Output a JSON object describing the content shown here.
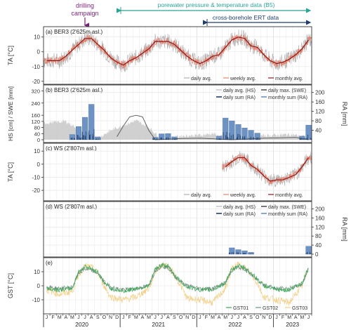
{
  "annotations": {
    "drilling": [
      "drilling",
      "campaign"
    ],
    "porewater": "porewater pressure & temperature data (B5)",
    "ert": "cross-borehole ERT data"
  },
  "colors": {
    "daily": "#b0b0b0",
    "weekly": "#e8826f",
    "monthly": "#8b1a1a",
    "hs": "#c8c8c8",
    "swe": "#555555",
    "ra_daily": "#1f3e6e",
    "ra_monthly": "#6d93c4",
    "gst01": "#3fa65c",
    "gst02": "#6f8f7c",
    "gst03": "#f2cf86",
    "annotation": "#2aa594",
    "drill": "#7b1f7b"
  },
  "x_axis": {
    "month_letters": [
      "J",
      "F",
      "M",
      "A",
      "M",
      "J",
      "J",
      "A",
      "S",
      "O",
      "N",
      "D"
    ],
    "years": [
      "2020",
      "2021",
      "2022",
      "2023"
    ]
  },
  "chart_data": [
    {
      "id": "a",
      "type": "line",
      "title": "(a) BER3 (2'625m asl.)",
      "ylabel": "TA [°C]",
      "ylim": [
        -22,
        17
      ],
      "yticks": [
        -20,
        -10,
        0,
        10
      ],
      "x_start": "2020-01",
      "x_end": "2023-07",
      "legend": [
        "daily avg.",
        "weekly avg.",
        "monthly avg."
      ],
      "series": [
        {
          "name": "monthly avg.",
          "x": [
            "2020-01",
            "2020-02",
            "2020-03",
            "2020-04",
            "2020-05",
            "2020-06",
            "2020-07",
            "2020-08",
            "2020-09",
            "2020-10",
            "2020-11",
            "2020-12",
            "2021-01",
            "2021-02",
            "2021-03",
            "2021-04",
            "2021-05",
            "2021-06",
            "2021-07",
            "2021-08",
            "2021-09",
            "2021-10",
            "2021-11",
            "2021-12",
            "2022-01",
            "2022-02",
            "2022-03",
            "2022-04",
            "2022-05",
            "2022-06",
            "2022-07",
            "2022-08",
            "2022-09",
            "2022-10",
            "2022-11",
            "2022-12",
            "2023-01",
            "2023-02",
            "2023-03",
            "2023-04",
            "2023-05",
            "2023-06"
          ],
          "values": [
            -6,
            -6,
            -6,
            -3,
            1,
            5,
            9,
            9,
            5,
            1,
            -4,
            -7,
            -9,
            -6,
            -4,
            -1,
            2,
            7,
            7,
            7,
            5,
            1,
            -3,
            -6,
            -8,
            -6,
            -3,
            -2,
            3,
            8,
            10,
            9,
            4,
            3,
            -2,
            -6,
            -8,
            -7,
            -5,
            -2,
            2,
            8
          ]
        }
      ]
    },
    {
      "id": "b",
      "type": "bar",
      "title": "(b) BER3 (2'625m asl.)",
      "ylabel_left": "HS [cm] / SWE [mm]",
      "ylabel_right": "RA [mm]",
      "left_ticks": [
        0,
        40,
        80,
        120,
        160,
        240,
        320
      ],
      "right_ticks": [
        40,
        80,
        120,
        160,
        200
      ],
      "legend": [
        "daily avg. (HS)",
        "daily max. (SWE)",
        "daily sum (RA)",
        "monthly sum (RA)"
      ],
      "series": [
        {
          "name": "monthly sum (RA)",
          "x": [
            "2020-05",
            "2020-06",
            "2020-07",
            "2020-08",
            "2020-09",
            "2021-06",
            "2021-07",
            "2021-08",
            "2021-09",
            "2022-04",
            "2022-05",
            "2022-06",
            "2022-07",
            "2022-08",
            "2022-09",
            "2022-10",
            "2023-05",
            "2023-06"
          ],
          "values": [
            22,
            56,
            95,
            150,
            12,
            10,
            25,
            26,
            12,
            15,
            92,
            80,
            65,
            50,
            40,
            28,
            15,
            62
          ]
        },
        {
          "name": "daily max. (SWE)",
          "x": [
            "2020-12",
            "2021-01",
            "2021-02",
            "2021-03",
            "2021-04",
            "2021-05",
            "2021-06",
            "2021-10",
            "2022-01",
            "2022-06",
            "2022-11",
            "2023-01",
            "2023-04",
            "2023-06"
          ],
          "values": [
            20,
            90,
            150,
            160,
            150,
            60,
            0,
            8,
            10,
            0,
            10,
            12,
            15,
            0
          ]
        },
        {
          "name": "daily avg. (HS)",
          "x": [
            "2020-01",
            "2020-04",
            "2020-06",
            "2020-09",
            "2020-11",
            "2021-01",
            "2021-03",
            "2021-05",
            "2021-07",
            "2021-10",
            "2022-01",
            "2022-03",
            "2022-05",
            "2022-07",
            "2022-10",
            "2023-01",
            "2023-03",
            "2023-05",
            "2023-06"
          ],
          "values": [
            110,
            120,
            70,
            10,
            60,
            95,
            125,
            80,
            5,
            25,
            30,
            40,
            15,
            0,
            25,
            30,
            35,
            25,
            5
          ]
        }
      ]
    },
    {
      "id": "c",
      "type": "line",
      "title": "(c) WS (2'807m asl.)",
      "ylabel": "TA [°C]",
      "ylim": [
        -28,
        16
      ],
      "yticks": [
        -20,
        -10,
        0,
        10
      ],
      "legend": [
        "daily avg.",
        "weekly avg.",
        "monthly avg."
      ],
      "series": [
        {
          "name": "monthly avg.",
          "x": [
            "2022-05",
            "2022-06",
            "2022-07",
            "2022-08",
            "2022-09",
            "2022-10",
            "2022-11",
            "2022-12",
            "2023-01",
            "2023-02",
            "2023-03",
            "2023-04",
            "2023-05",
            "2023-06"
          ],
          "values": [
            -2,
            2,
            5,
            5,
            -1,
            -4,
            -9,
            -13,
            -12,
            -12,
            -10,
            -8,
            -2,
            5
          ]
        }
      ]
    },
    {
      "id": "d",
      "type": "bar",
      "title": "(d) WS (2'807m asl.)",
      "ylabel_right": "RA [mm]",
      "right_ticks": [
        0,
        40,
        80,
        120,
        160,
        200
      ],
      "legend": [
        "daily avg. (HS)",
        "daily max. (SWE)",
        "daily sum (RA)",
        "monthly sum (RA)"
      ],
      "series": [
        {
          "name": "monthly sum (RA)",
          "x": [
            "2022-06",
            "2022-07",
            "2022-08",
            "2022-09",
            "2023-06"
          ],
          "values": [
            28,
            20,
            15,
            8,
            35
          ]
        }
      ]
    },
    {
      "id": "e",
      "type": "line",
      "title": "(e)",
      "ylabel": "GST [°C]",
      "ylim": [
        -20,
        20
      ],
      "yticks": [
        -10,
        0,
        10
      ],
      "legend": [
        "GST01",
        "GST02",
        "GST03"
      ],
      "series": [
        {
          "name": "GST01",
          "x": [
            "2020-01",
            "2020-03",
            "2020-05",
            "2020-06",
            "2020-07",
            "2020-08",
            "2020-09",
            "2020-10",
            "2020-11",
            "2021-01",
            "2021-03",
            "2021-05",
            "2021-06",
            "2021-07",
            "2021-08",
            "2021-09",
            "2021-10",
            "2021-11",
            "2022-01",
            "2022-03",
            "2022-05",
            "2022-06",
            "2022-07",
            "2022-08",
            "2022-09",
            "2022-10",
            "2022-11",
            "2023-01",
            "2023-03",
            "2023-05",
            "2023-06"
          ],
          "values": [
            -2,
            -3,
            -2,
            10,
            14,
            12,
            10,
            2,
            -2,
            -4,
            -2,
            0,
            12,
            15,
            14,
            8,
            3,
            -1,
            -3,
            -3,
            2,
            12,
            14,
            13,
            9,
            5,
            0,
            -3,
            -3,
            2,
            13
          ]
        },
        {
          "name": "GST02",
          "x": [
            "2020-01",
            "2020-03",
            "2020-05",
            "2020-06",
            "2020-07",
            "2020-08",
            "2020-09",
            "2020-10",
            "2020-11",
            "2021-01",
            "2021-03",
            "2021-05",
            "2021-06",
            "2021-07",
            "2021-08",
            "2021-09",
            "2021-10",
            "2021-11",
            "2022-01",
            "2022-03",
            "2022-05",
            "2022-06",
            "2022-07",
            "2022-08",
            "2022-09",
            "2022-10",
            "2022-11",
            "2023-01",
            "2023-03",
            "2023-05",
            "2023-06"
          ],
          "values": [
            -1,
            -2,
            -1,
            9,
            12,
            11,
            9,
            3,
            -1,
            -3,
            -2,
            0,
            11,
            14,
            13,
            7,
            3,
            0,
            -2,
            -2,
            2,
            11,
            13,
            12,
            8,
            4,
            1,
            -2,
            -2,
            1,
            12
          ]
        },
        {
          "name": "GST03",
          "x": [
            "2020-01",
            "2020-03",
            "2020-05",
            "2020-06",
            "2020-07",
            "2020-08",
            "2020-09",
            "2020-10",
            "2020-11",
            "2021-01",
            "2021-03",
            "2021-05",
            "2021-06",
            "2021-07",
            "2021-08",
            "2021-09",
            "2021-10",
            "2021-11",
            "2022-01",
            "2022-03",
            "2022-05",
            "2022-06",
            "2022-07",
            "2022-08",
            "2022-09",
            "2022-10",
            "2022-11",
            "2023-01",
            "2023-03",
            "2023-05",
            "2023-06"
          ],
          "values": [
            -3,
            -6,
            -4,
            8,
            14,
            13,
            9,
            0,
            -8,
            -10,
            -8,
            -2,
            10,
            15,
            14,
            8,
            0,
            -9,
            -10,
            -12,
            -2,
            12,
            15,
            13,
            8,
            2,
            -8,
            -10,
            -12,
            0,
            14
          ]
        }
      ]
    }
  ]
}
